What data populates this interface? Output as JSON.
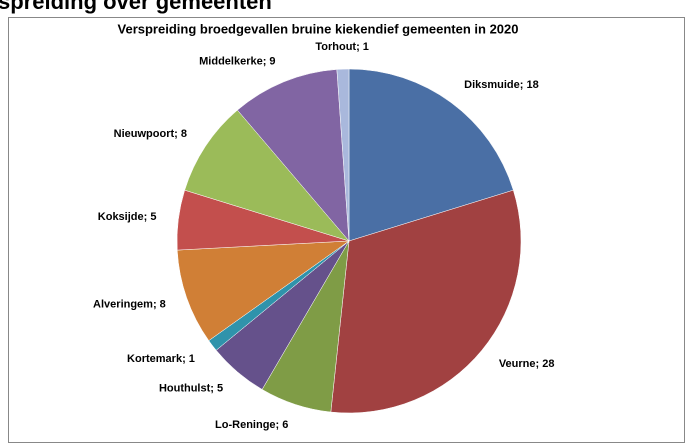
{
  "heading": "spreiding over gemeenten",
  "chart_data": {
    "type": "pie",
    "title": "Verspreiding broedgevallen bruine kiekendief gemeenten in 2020",
    "values": [
      18,
      28,
      6,
      5,
      1,
      8,
      5,
      8,
      9,
      1
    ],
    "value_labels": [
      "Diksmuide; 18",
      "Veurne; 28",
      "Lo-Reninge; 6",
      "Houthulst; 5",
      "Kortemark; 1",
      "Alveringem; 8",
      "Koksijde; 5",
      "Nieuwpoort; 8",
      "Middelkerke; 9",
      "Torhout; 1"
    ],
    "colors": [
      "#4a6fa5",
      "#a14141",
      "#7f9c46",
      "#65518b",
      "#2f93ab",
      "#d07f36",
      "#c34f4d",
      "#9bbb59",
      "#8165a3",
      "#a9b8dc"
    ]
  }
}
